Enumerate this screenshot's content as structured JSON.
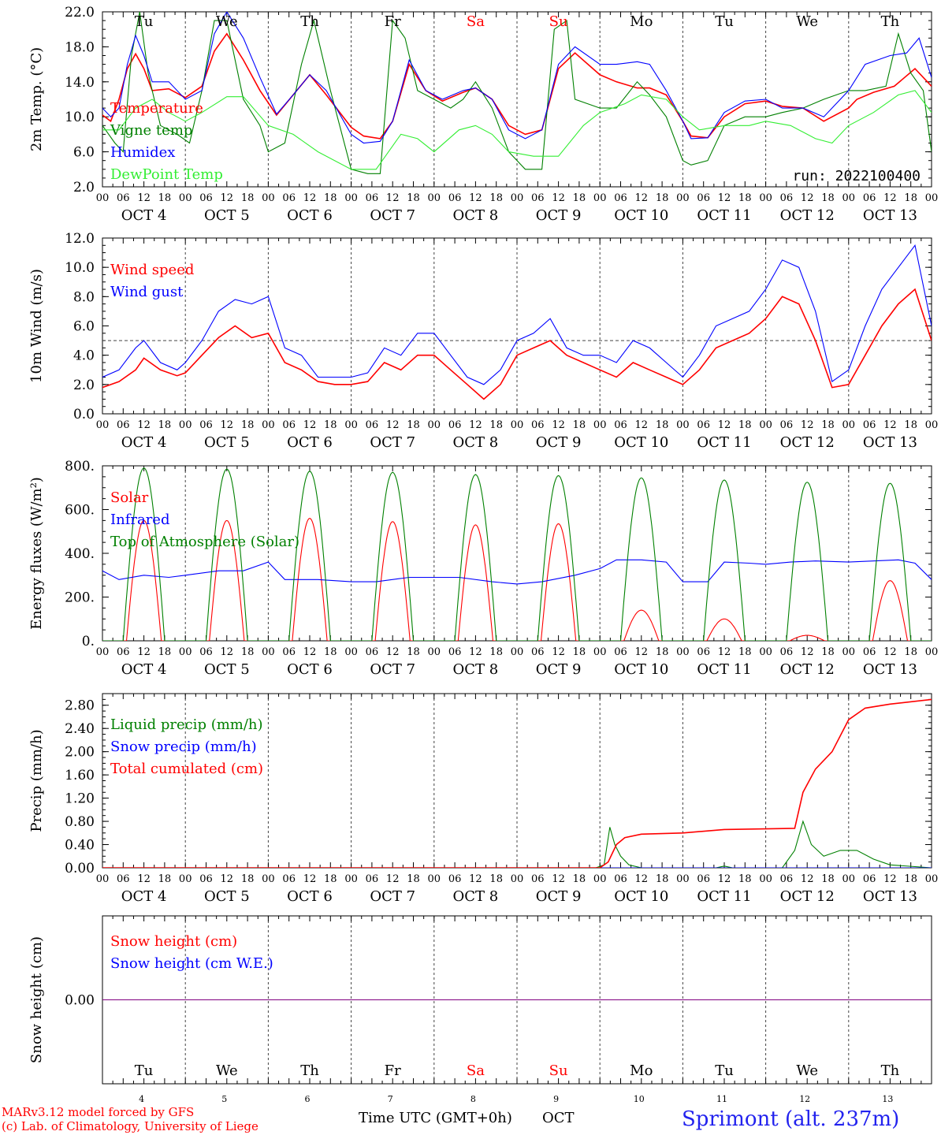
{
  "meteogram": {
    "days_of_week": [
      "Tu",
      "We",
      "Th",
      "Fr",
      "Sa",
      "Su",
      "Mo",
      "Tu",
      "We",
      "Th"
    ],
    "weekend_indices": [
      4,
      5
    ],
    "date_labels": [
      "OCT  4",
      "OCT  5",
      "OCT  6",
      "OCT  7",
      "OCT  8",
      "OCT  9",
      "OCT 10",
      "OCT 11",
      "OCT 12",
      "OCT 13"
    ],
    "hour_ticks": [
      "00",
      "06",
      "12",
      "18"
    ],
    "last_hour_tick": "00",
    "bottom_day_numbers": [
      "4",
      "5",
      "6",
      "7",
      "8",
      "9",
      "10",
      "11",
      "12",
      "13"
    ],
    "xlabel": "Time UTC (GMT+0h)",
    "month_label": "OCT",
    "footer_model": "MARv3.12 model forced by GFS",
    "footer_lab": "(c) Lab. of Climatology, University of Liege",
    "location": "Sprimont (alt. 237m)",
    "run_label": "run: 2022100400",
    "colors": {
      "red": "#ff0000",
      "green": "#008000",
      "blue": "#0000ff",
      "lightgreen": "#33ee33",
      "purple": "#800080"
    }
  },
  "chart_data": [
    {
      "type": "line",
      "ylabel": "2m Temp. (°C)",
      "ylim": [
        2,
        22
      ],
      "yticks": [
        "2.0",
        "6.0",
        "10.0",
        "14.0",
        "18.0",
        "22.0"
      ],
      "series": [
        {
          "name": "Temperature",
          "color": "#ff0000",
          "x_days": [
            0,
            0.1,
            0.2,
            0.3,
            0.4,
            0.5,
            0.6,
            0.8,
            1.0,
            1.2,
            1.35,
            1.5,
            1.7,
            1.9,
            2.1,
            2.3,
            2.5,
            2.7,
            3.0,
            3.15,
            3.35,
            3.5,
            3.7,
            3.9,
            4.1,
            4.35,
            4.5,
            4.7,
            4.9,
            5.1,
            5.3,
            5.5,
            5.7,
            6.0,
            6.2,
            6.45,
            6.6,
            6.8,
            7.0,
            7.1,
            7.3,
            7.5,
            7.75,
            8.0,
            8.2,
            8.45,
            8.7,
            9.0,
            9.1,
            9.3,
            9.55,
            9.8,
            10.0
          ],
          "values": [
            10.2,
            9.5,
            12,
            15.5,
            17.2,
            15.5,
            13,
            13.2,
            12.2,
            13.5,
            17.5,
            19.5,
            16.5,
            13,
            10.2,
            12.5,
            14.8,
            12.5,
            8.8,
            7.8,
            7.5,
            9.5,
            16,
            13,
            11.8,
            12.8,
            13.3,
            12,
            9,
            8,
            8.5,
            15.5,
            17.3,
            14.8,
            14,
            13.3,
            13.3,
            12.5,
            9.5,
            7.8,
            7.6,
            10,
            11.5,
            11.8,
            11.2,
            11,
            9.5,
            11,
            12,
            12.8,
            13.5,
            15.5,
            13.5
          ]
        },
        {
          "name": "Vigne temp",
          "color": "#008000",
          "x_days": [
            0,
            0.15,
            0.25,
            0.35,
            0.45,
            0.55,
            0.7,
            0.9,
            1.05,
            1.2,
            1.35,
            1.5,
            1.7,
            1.9,
            2.0,
            2.2,
            2.4,
            2.55,
            2.75,
            3.0,
            3.2,
            3.35,
            3.5,
            3.65,
            3.8,
            4.0,
            4.2,
            4.35,
            4.5,
            4.7,
            4.9,
            5.1,
            5.3,
            5.45,
            5.6,
            5.7,
            6.0,
            6.2,
            6.45,
            6.6,
            6.8,
            7.0,
            7.1,
            7.3,
            7.5,
            7.75,
            8.0,
            8.2,
            8.45,
            8.7,
            9.0,
            9.2,
            9.45,
            9.6,
            9.75,
            9.9,
            10.0
          ],
          "values": [
            9,
            7,
            6,
            17,
            22,
            15,
            9,
            8,
            7,
            13,
            21,
            21,
            12,
            9,
            6,
            7,
            16,
            21,
            13,
            4,
            3.5,
            3.5,
            21,
            19,
            13,
            12,
            11,
            12,
            14,
            11,
            6,
            4,
            4,
            20,
            21,
            12,
            11,
            11,
            14,
            12.5,
            10,
            5,
            4.5,
            5,
            9,
            10,
            10,
            10.5,
            11,
            12,
            13,
            13,
            13.5,
            19.5,
            15,
            13,
            6
          ]
        },
        {
          "name": "Humidex",
          "color": "#0000ff",
          "x_days": [
            0,
            0.1,
            0.2,
            0.3,
            0.4,
            0.5,
            0.6,
            0.8,
            1.0,
            1.2,
            1.35,
            1.5,
            1.7,
            1.9,
            2.1,
            2.3,
            2.5,
            2.7,
            3.0,
            3.15,
            3.35,
            3.5,
            3.7,
            3.9,
            4.1,
            4.35,
            4.5,
            4.7,
            4.9,
            5.1,
            5.3,
            5.5,
            5.7,
            6.0,
            6.2,
            6.45,
            6.6,
            6.8,
            7.0,
            7.1,
            7.3,
            7.5,
            7.75,
            8.0,
            8.2,
            8.45,
            8.7,
            9.0,
            9.2,
            9.5,
            9.7,
            9.85,
            10.0
          ],
          "values": [
            11,
            10,
            11,
            16,
            19.3,
            17,
            14,
            14,
            12,
            13,
            19.5,
            22,
            19,
            14.5,
            10.3,
            12.5,
            14.8,
            13,
            8,
            7,
            7.2,
            9.5,
            16.5,
            13,
            12,
            13,
            13.3,
            12,
            8.5,
            7.5,
            8.5,
            16,
            18,
            16,
            16,
            16.3,
            16,
            13,
            9.5,
            7.5,
            7.6,
            10.5,
            11.8,
            12,
            11,
            11,
            10,
            13,
            16,
            17,
            17.3,
            19,
            14.5
          ]
        },
        {
          "name": "DewPoint Temp",
          "color": "#33ee33",
          "x_days": [
            0,
            0.2,
            0.4,
            0.6,
            0.8,
            1.0,
            1.2,
            1.5,
            1.7,
            2.0,
            2.3,
            2.6,
            3.0,
            3.3,
            3.6,
            3.8,
            4.0,
            4.3,
            4.5,
            4.7,
            4.9,
            5.2,
            5.5,
            5.8,
            6.0,
            6.3,
            6.5,
            6.8,
            7.0,
            7.2,
            7.5,
            7.8,
            8.0,
            8.3,
            8.6,
            8.8,
            9.0,
            9.3,
            9.6,
            9.8,
            10.0
          ],
          "values": [
            8.5,
            8.5,
            11,
            12,
            10.5,
            9.5,
            10.5,
            12.3,
            12.3,
            9,
            8,
            6,
            4,
            4,
            8,
            7.5,
            6,
            8.5,
            9,
            8,
            6,
            5.5,
            5.5,
            9,
            10.5,
            11.5,
            12.5,
            12,
            10,
            8.5,
            9,
            9,
            9.5,
            9,
            7.5,
            7,
            9,
            10.5,
            12.5,
            13,
            10.5
          ]
        }
      ]
    },
    {
      "type": "line",
      "ylabel": "10m Wind (m/s)",
      "ylim": [
        0,
        12
      ],
      "yticks": [
        "0.0",
        "2.0",
        "4.0",
        "6.0",
        "8.0",
        "10.0",
        "12.0"
      ],
      "reference_line": 5.0,
      "series": [
        {
          "name": "Wind speed",
          "color": "#ff0000",
          "x_days": [
            0,
            0.2,
            0.4,
            0.5,
            0.7,
            0.9,
            1.0,
            1.2,
            1.4,
            1.6,
            1.8,
            2.0,
            2.2,
            2.4,
            2.6,
            2.8,
            3.0,
            3.2,
            3.4,
            3.6,
            3.8,
            4.0,
            4.2,
            4.4,
            4.6,
            4.8,
            5.0,
            5.2,
            5.4,
            5.6,
            5.8,
            6.0,
            6.2,
            6.4,
            6.6,
            6.8,
            7.0,
            7.2,
            7.4,
            7.6,
            7.8,
            8.0,
            8.2,
            8.4,
            8.6,
            8.8,
            9.0,
            9.2,
            9.4,
            9.6,
            9.8,
            10.0
          ],
          "values": [
            1.8,
            2.2,
            3.0,
            3.8,
            3.0,
            2.6,
            2.8,
            4.0,
            5.2,
            6.0,
            5.2,
            5.5,
            3.5,
            3.0,
            2.2,
            2.0,
            2.0,
            2.2,
            3.5,
            3.0,
            4.0,
            4.0,
            3.0,
            2.0,
            1.0,
            2.0,
            4.0,
            4.5,
            5.0,
            4.0,
            3.5,
            3.0,
            2.5,
            3.5,
            3.0,
            2.5,
            2.0,
            3.0,
            4.5,
            5.0,
            5.5,
            6.5,
            8.0,
            7.5,
            5.0,
            1.8,
            2.0,
            4.0,
            6.0,
            7.5,
            8.5,
            5.0
          ]
        },
        {
          "name": "Wind gust",
          "color": "#0000ff",
          "x_days": [
            0,
            0.2,
            0.4,
            0.5,
            0.7,
            0.9,
            1.0,
            1.2,
            1.4,
            1.6,
            1.8,
            2.0,
            2.2,
            2.4,
            2.6,
            2.8,
            3.0,
            3.2,
            3.4,
            3.6,
            3.8,
            4.0,
            4.2,
            4.4,
            4.6,
            4.8,
            5.0,
            5.2,
            5.4,
            5.6,
            5.8,
            6.0,
            6.2,
            6.4,
            6.6,
            6.8,
            7.0,
            7.2,
            7.4,
            7.6,
            7.8,
            8.0,
            8.2,
            8.4,
            8.6,
            8.8,
            9.0,
            9.2,
            9.4,
            9.6,
            9.8,
            10.0
          ],
          "values": [
            2.5,
            3.0,
            4.5,
            5.0,
            3.5,
            3.0,
            3.5,
            5.0,
            7.0,
            7.8,
            7.5,
            8.0,
            4.5,
            4.0,
            2.5,
            2.5,
            2.5,
            2.8,
            4.5,
            4.0,
            5.5,
            5.5,
            4.0,
            2.5,
            2.0,
            3.0,
            5.0,
            5.5,
            6.5,
            4.5,
            4.0,
            4.0,
            3.5,
            5.0,
            4.5,
            3.5,
            2.5,
            4.0,
            6.0,
            6.5,
            7.0,
            8.5,
            10.5,
            10.0,
            7.0,
            2.2,
            3.0,
            6.0,
            8.5,
            10.0,
            11.5,
            6.0
          ]
        }
      ]
    },
    {
      "type": "line",
      "ylabel": "Energy fluxes (W/m²)",
      "ylim": [
        0,
        800
      ],
      "yticks": [
        "0.",
        "200.",
        "400.",
        "600.",
        "800."
      ],
      "series": [
        {
          "name": "Solar",
          "color": "#ff0000",
          "peaks_by_day": [
            550,
            550,
            560,
            545,
            530,
            535,
            140,
            100,
            25,
            275
          ]
        },
        {
          "name": "Infrared",
          "color": "#0000ff",
          "x_days": [
            0,
            0.2,
            0.5,
            0.8,
            1.0,
            1.4,
            1.7,
            2.0,
            2.2,
            2.6,
            3.0,
            3.3,
            3.7,
            4.0,
            4.3,
            4.7,
            5.0,
            5.3,
            5.7,
            6.0,
            6.2,
            6.5,
            6.8,
            7.0,
            7.3,
            7.5,
            7.8,
            8.0,
            8.3,
            8.6,
            9.0,
            9.3,
            9.6,
            9.8,
            10.0
          ],
          "values": [
            320,
            280,
            300,
            290,
            300,
            320,
            320,
            360,
            280,
            280,
            270,
            270,
            290,
            290,
            290,
            270,
            260,
            270,
            300,
            330,
            370,
            370,
            360,
            270,
            270,
            360,
            355,
            350,
            360,
            365,
            360,
            365,
            370,
            355,
            280
          ]
        },
        {
          "name": "Top of Atmosphere (Solar)",
          "color": "#008000",
          "peaks_by_day": [
            790,
            785,
            775,
            770,
            760,
            755,
            745,
            735,
            725,
            720
          ]
        }
      ]
    },
    {
      "type": "line",
      "ylabel": "Precip (mm/h)",
      "ylim": [
        0,
        3.0
      ],
      "yticks": [
        "0.00",
        "0.40",
        "0.80",
        "1.20",
        "1.60",
        "2.00",
        "2.40",
        "2.80"
      ],
      "series": [
        {
          "name": "Liquid precip (mm/h)",
          "color": "#008000",
          "x_days": [
            0,
            5.95,
            6.05,
            6.12,
            6.18,
            6.25,
            6.35,
            6.5,
            7.0,
            7.4,
            7.5,
            7.6,
            8.2,
            8.35,
            8.45,
            8.55,
            8.7,
            8.9,
            9.1,
            9.3,
            9.5,
            9.8,
            10.0
          ],
          "values": [
            0,
            0,
            0.05,
            0.7,
            0.4,
            0.2,
            0.05,
            0,
            0,
            0,
            0.03,
            0,
            0,
            0.3,
            0.8,
            0.4,
            0.2,
            0.3,
            0.3,
            0.15,
            0.05,
            0.02,
            0
          ]
        },
        {
          "name": "Snow precip (mm/h)",
          "color": "#0000ff",
          "x_days": [
            0,
            10
          ],
          "values": [
            0,
            0
          ]
        },
        {
          "name": "Total cumulated (cm)",
          "color": "#ff0000",
          "x_days": [
            0,
            6.0,
            6.1,
            6.2,
            6.3,
            6.5,
            7.0,
            7.5,
            8.0,
            8.35,
            8.45,
            8.6,
            8.8,
            9.0,
            9.2,
            9.5,
            10.0
          ],
          "values": [
            0,
            0,
            0.1,
            0.4,
            0.52,
            0.58,
            0.6,
            0.66,
            0.67,
            0.68,
            1.3,
            1.7,
            2.0,
            2.55,
            2.75,
            2.82,
            2.9
          ]
        }
      ]
    },
    {
      "type": "line",
      "ylabel": "Snow height (cm)",
      "yticks": [
        "0.00"
      ],
      "series": [
        {
          "name": "Snow height (cm)",
          "color": "#ff0000",
          "x_days": [
            0,
            10
          ],
          "values": [
            0,
            0
          ]
        },
        {
          "name": "Snow height (cm W.E.)",
          "color": "#0000ff",
          "x_days": [
            0,
            10
          ],
          "values": [
            0,
            0
          ]
        }
      ]
    }
  ]
}
